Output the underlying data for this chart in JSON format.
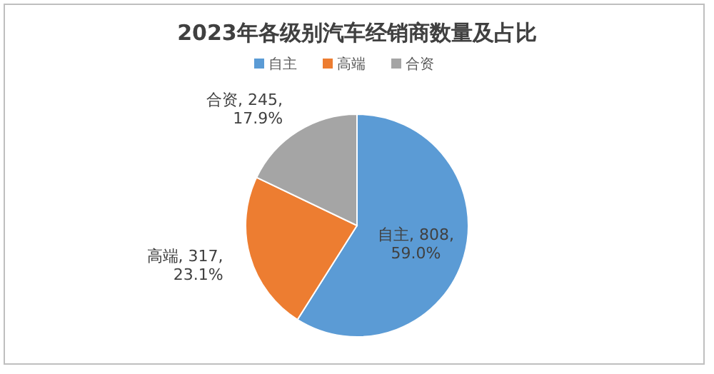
{
  "chart_data": {
    "type": "pie",
    "title": "2023年各级别汽车经销商数量及占比",
    "categories": [
      "自主",
      "高端",
      "合资"
    ],
    "values": [
      808,
      317,
      245
    ],
    "colors": [
      "#5b9bd5",
      "#ed7d31",
      "#a5a5a5"
    ],
    "value_labels": [
      "自主, 808, 59.0%",
      "高端, 317, 23.1%",
      "合资, 245, 17.9%"
    ],
    "legend": "top"
  }
}
